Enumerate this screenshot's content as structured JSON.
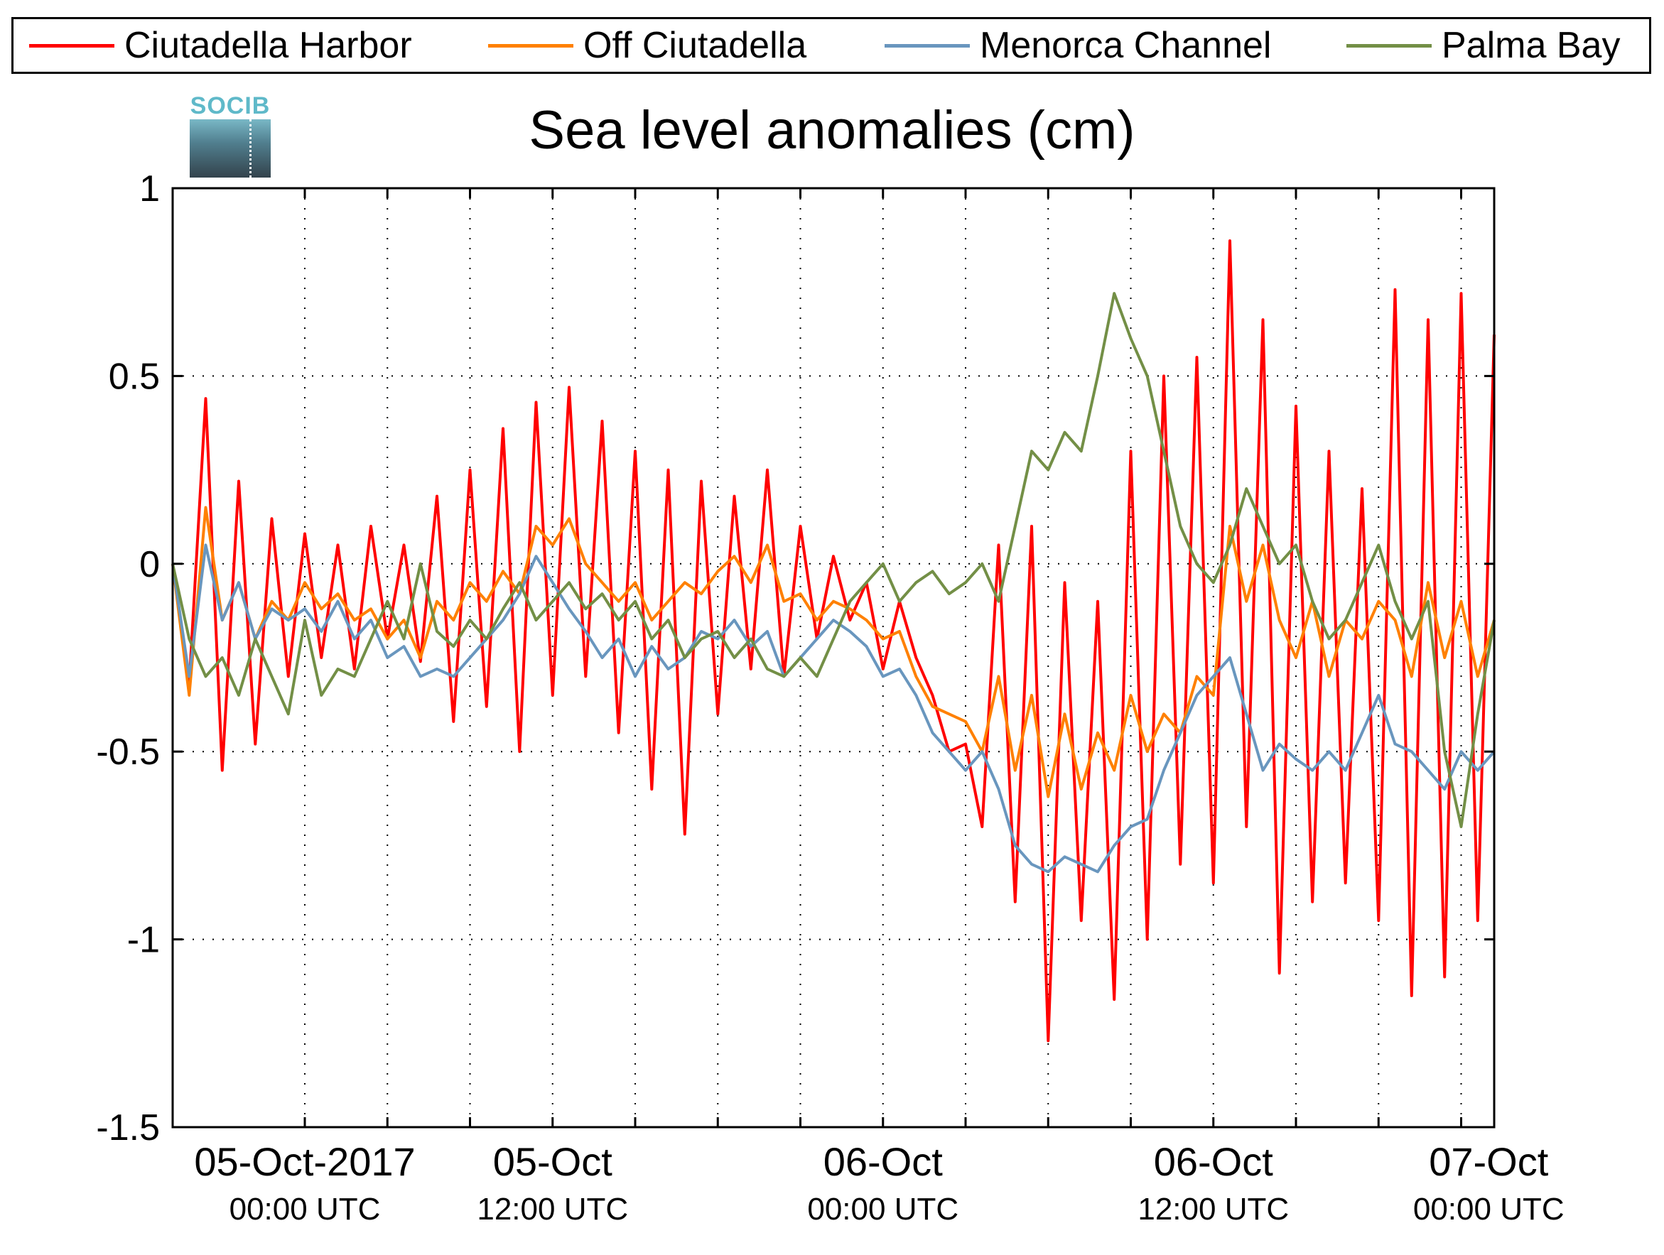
{
  "chart_data": {
    "type": "line",
    "title": "Sea level anomalies (cm)",
    "xlabel": "",
    "ylabel": "",
    "ylim": [
      -1.5,
      1
    ],
    "y_ticks": [
      {
        "value": 1,
        "label": "1"
      },
      {
        "value": 0.5,
        "label": "0.5"
      },
      {
        "value": 0,
        "label": "0"
      },
      {
        "value": -0.5,
        "label": "-0.5"
      },
      {
        "value": -1,
        "label": "-1"
      },
      {
        "value": -1.5,
        "label": "-1.5"
      }
    ],
    "xlim_hours": [
      -4.8,
      43.2
    ],
    "x_label_ticks": [
      {
        "hour": 0,
        "date": "05-Oct-2017",
        "time": "00:00 UTC"
      },
      {
        "hour": 9,
        "date": "05-Oct",
        "time": "12:00 UTC"
      },
      {
        "hour": 21,
        "date": "06-Oct",
        "time": "00:00 UTC"
      },
      {
        "hour": 33,
        "date": "06-Oct",
        "time": "12:00 UTC"
      },
      {
        "hour": 43,
        "date": "07-Oct",
        "time": "00:00 UTC"
      }
    ],
    "x_minor_ticks_hours": [
      0,
      3,
      6,
      9,
      12,
      15,
      18,
      21,
      24,
      27,
      30,
      33,
      36,
      39,
      42
    ],
    "grid": true,
    "legend_position": "top",
    "series": [
      {
        "name": "Ciutadella Harbor",
        "color": "#ff0000",
        "stroke_width": 4,
        "x_hours": [
          -4.8,
          -4.2,
          -3.6,
          -3.0,
          -2.4,
          -1.8,
          -1.2,
          -0.6,
          0,
          0.6,
          1.2,
          1.8,
          2.4,
          3.0,
          3.6,
          4.2,
          4.8,
          5.4,
          6.0,
          6.6,
          7.2,
          7.8,
          8.4,
          9.0,
          9.6,
          10.2,
          10.8,
          11.4,
          12.0,
          12.6,
          13.2,
          13.8,
          14.4,
          15.0,
          15.6,
          16.2,
          16.8,
          17.4,
          18.0,
          18.6,
          19.2,
          19.8,
          20.4,
          21.0,
          21.6,
          22.2,
          22.8,
          23.4,
          24.0,
          24.6,
          25.2,
          25.8,
          26.4,
          27.0,
          27.6,
          28.2,
          28.8,
          29.4,
          30.0,
          30.6,
          31.2,
          31.8,
          32.4,
          33.0,
          33.6,
          34.2,
          34.8,
          35.4,
          36.0,
          36.6,
          37.2,
          37.8,
          38.4,
          39.0,
          39.6,
          40.2,
          40.8,
          41.4,
          42.0,
          42.6,
          43.2
        ],
        "y": [
          0.0,
          -0.32,
          0.44,
          -0.55,
          0.22,
          -0.48,
          0.12,
          -0.3,
          0.08,
          -0.25,
          0.05,
          -0.28,
          0.1,
          -0.2,
          0.05,
          -0.26,
          0.18,
          -0.42,
          0.25,
          -0.38,
          0.36,
          -0.5,
          0.43,
          -0.35,
          0.47,
          -0.3,
          0.38,
          -0.45,
          0.3,
          -0.6,
          0.25,
          -0.72,
          0.22,
          -0.4,
          0.18,
          -0.28,
          0.25,
          -0.3,
          0.1,
          -0.2,
          0.02,
          -0.15,
          -0.05,
          -0.28,
          -0.1,
          -0.25,
          -0.35,
          -0.5,
          -0.48,
          -0.7,
          0.05,
          -0.9,
          0.1,
          -1.27,
          -0.05,
          -0.95,
          -0.1,
          -1.16,
          0.3,
          -1.0,
          0.5,
          -0.8,
          0.55,
          -0.85,
          0.86,
          -0.7,
          0.65,
          -1.09,
          0.42,
          -0.9,
          0.3,
          -0.85,
          0.2,
          -0.95,
          0.73,
          -1.15,
          0.65,
          -1.1,
          0.72,
          -0.95,
          0.61
        ]
      },
      {
        "name": "Off Ciutadella",
        "color": "#ff8000",
        "stroke_width": 4,
        "x_hours": [
          -4.8,
          -4.2,
          -3.6,
          -3.0,
          -2.4,
          -1.8,
          -1.2,
          -0.6,
          0,
          0.6,
          1.2,
          1.8,
          2.4,
          3.0,
          3.6,
          4.2,
          4.8,
          5.4,
          6.0,
          6.6,
          7.2,
          7.8,
          8.4,
          9.0,
          9.6,
          10.2,
          10.8,
          11.4,
          12.0,
          12.6,
          13.2,
          13.8,
          14.4,
          15.0,
          15.6,
          16.2,
          16.8,
          17.4,
          18.0,
          18.6,
          19.2,
          19.8,
          20.4,
          21.0,
          21.6,
          22.2,
          22.8,
          23.4,
          24.0,
          24.6,
          25.2,
          25.8,
          26.4,
          27.0,
          27.6,
          28.2,
          28.8,
          29.4,
          30.0,
          30.6,
          31.2,
          31.8,
          32.4,
          33.0,
          33.6,
          34.2,
          34.8,
          35.4,
          36.0,
          36.6,
          37.2,
          37.8,
          38.4,
          39.0,
          39.6,
          40.2,
          40.8,
          41.4,
          42.0,
          42.6,
          43.2
        ],
        "y": [
          0.0,
          -0.35,
          0.15,
          -0.15,
          -0.05,
          -0.2,
          -0.1,
          -0.15,
          -0.05,
          -0.12,
          -0.08,
          -0.15,
          -0.12,
          -0.2,
          -0.15,
          -0.25,
          -0.1,
          -0.15,
          -0.05,
          -0.1,
          -0.02,
          -0.08,
          0.1,
          0.05,
          0.12,
          0.0,
          -0.05,
          -0.1,
          -0.05,
          -0.15,
          -0.1,
          -0.05,
          -0.08,
          -0.02,
          0.02,
          -0.05,
          0.05,
          -0.1,
          -0.08,
          -0.15,
          -0.1,
          -0.12,
          -0.15,
          -0.2,
          -0.18,
          -0.3,
          -0.38,
          -0.4,
          -0.42,
          -0.5,
          -0.3,
          -0.55,
          -0.35,
          -0.62,
          -0.4,
          -0.6,
          -0.45,
          -0.55,
          -0.35,
          -0.5,
          -0.4,
          -0.45,
          -0.3,
          -0.35,
          0.1,
          -0.1,
          0.05,
          -0.15,
          -0.25,
          -0.1,
          -0.3,
          -0.15,
          -0.2,
          -0.1,
          -0.15,
          -0.3,
          -0.05,
          -0.25,
          -0.1,
          -0.3,
          -0.15
        ]
      },
      {
        "name": "Menorca Channel",
        "color": "#6996be",
        "stroke_width": 4,
        "x_hours": [
          -4.8,
          -4.2,
          -3.6,
          -3.0,
          -2.4,
          -1.8,
          -1.2,
          -0.6,
          0,
          0.6,
          1.2,
          1.8,
          2.4,
          3.0,
          3.6,
          4.2,
          4.8,
          5.4,
          6.0,
          6.6,
          7.2,
          7.8,
          8.4,
          9.0,
          9.6,
          10.2,
          10.8,
          11.4,
          12.0,
          12.6,
          13.2,
          13.8,
          14.4,
          15.0,
          15.6,
          16.2,
          16.8,
          17.4,
          18.0,
          18.6,
          19.2,
          19.8,
          20.4,
          21.0,
          21.6,
          22.2,
          22.8,
          23.4,
          24.0,
          24.6,
          25.2,
          25.8,
          26.4,
          27.0,
          27.6,
          28.2,
          28.8,
          29.4,
          30.0,
          30.6,
          31.2,
          31.8,
          32.4,
          33.0,
          33.6,
          34.2,
          34.8,
          35.4,
          36.0,
          36.6,
          37.2,
          37.8,
          38.4,
          39.0,
          39.6,
          40.2,
          40.8,
          41.4,
          42.0,
          42.6,
          43.2
        ],
        "y": [
          0.0,
          -0.3,
          0.05,
          -0.15,
          -0.05,
          -0.2,
          -0.12,
          -0.15,
          -0.12,
          -0.18,
          -0.1,
          -0.2,
          -0.15,
          -0.25,
          -0.22,
          -0.3,
          -0.28,
          -0.3,
          -0.25,
          -0.2,
          -0.15,
          -0.08,
          0.02,
          -0.05,
          -0.12,
          -0.18,
          -0.25,
          -0.2,
          -0.3,
          -0.22,
          -0.28,
          -0.25,
          -0.18,
          -0.2,
          -0.15,
          -0.22,
          -0.18,
          -0.3,
          -0.25,
          -0.2,
          -0.15,
          -0.18,
          -0.22,
          -0.3,
          -0.28,
          -0.35,
          -0.45,
          -0.5,
          -0.55,
          -0.5,
          -0.6,
          -0.75,
          -0.8,
          -0.82,
          -0.78,
          -0.8,
          -0.82,
          -0.75,
          -0.7,
          -0.68,
          -0.55,
          -0.45,
          -0.35,
          -0.3,
          -0.25,
          -0.4,
          -0.55,
          -0.48,
          -0.52,
          -0.55,
          -0.5,
          -0.55,
          -0.45,
          -0.35,
          -0.48,
          -0.5,
          -0.55,
          -0.6,
          -0.5,
          -0.55,
          -0.5
        ]
      },
      {
        "name": "Palma Bay",
        "color": "#738f46",
        "stroke_width": 4,
        "x_hours": [
          -4.8,
          -4.2,
          -3.6,
          -3.0,
          -2.4,
          -1.8,
          -1.2,
          -0.6,
          0,
          0.6,
          1.2,
          1.8,
          2.4,
          3.0,
          3.6,
          4.2,
          4.8,
          5.4,
          6.0,
          6.6,
          7.2,
          7.8,
          8.4,
          9.0,
          9.6,
          10.2,
          10.8,
          11.4,
          12.0,
          12.6,
          13.2,
          13.8,
          14.4,
          15.0,
          15.6,
          16.2,
          16.8,
          17.4,
          18.0,
          18.6,
          19.2,
          19.8,
          20.4,
          21.0,
          21.6,
          22.2,
          22.8,
          23.4,
          24.0,
          24.6,
          25.2,
          25.8,
          26.4,
          27.0,
          27.6,
          28.2,
          28.8,
          29.4,
          30.0,
          30.6,
          31.2,
          31.8,
          32.4,
          33.0,
          33.6,
          34.2,
          34.8,
          35.4,
          36.0,
          36.6,
          37.2,
          37.8,
          38.4,
          39.0,
          39.6,
          40.2,
          40.8,
          41.4,
          42.0,
          42.6,
          43.2
        ],
        "y": [
          0.0,
          -0.2,
          -0.3,
          -0.25,
          -0.35,
          -0.2,
          -0.3,
          -0.4,
          -0.15,
          -0.35,
          -0.28,
          -0.3,
          -0.2,
          -0.1,
          -0.2,
          0.0,
          -0.18,
          -0.22,
          -0.15,
          -0.2,
          -0.12,
          -0.05,
          -0.15,
          -0.1,
          -0.05,
          -0.12,
          -0.08,
          -0.15,
          -0.1,
          -0.2,
          -0.15,
          -0.25,
          -0.2,
          -0.18,
          -0.25,
          -0.2,
          -0.28,
          -0.3,
          -0.25,
          -0.3,
          -0.2,
          -0.1,
          -0.05,
          0.0,
          -0.1,
          -0.05,
          -0.02,
          -0.08,
          -0.05,
          0.0,
          -0.1,
          0.1,
          0.3,
          0.25,
          0.35,
          0.3,
          0.5,
          0.72,
          0.6,
          0.5,
          0.3,
          0.1,
          0.0,
          -0.05,
          0.05,
          0.2,
          0.1,
          0.0,
          0.05,
          -0.1,
          -0.2,
          -0.15,
          -0.05,
          0.05,
          -0.1,
          -0.2,
          -0.1,
          -0.5,
          -0.7,
          -0.4,
          -0.15
        ]
      }
    ]
  }
}
